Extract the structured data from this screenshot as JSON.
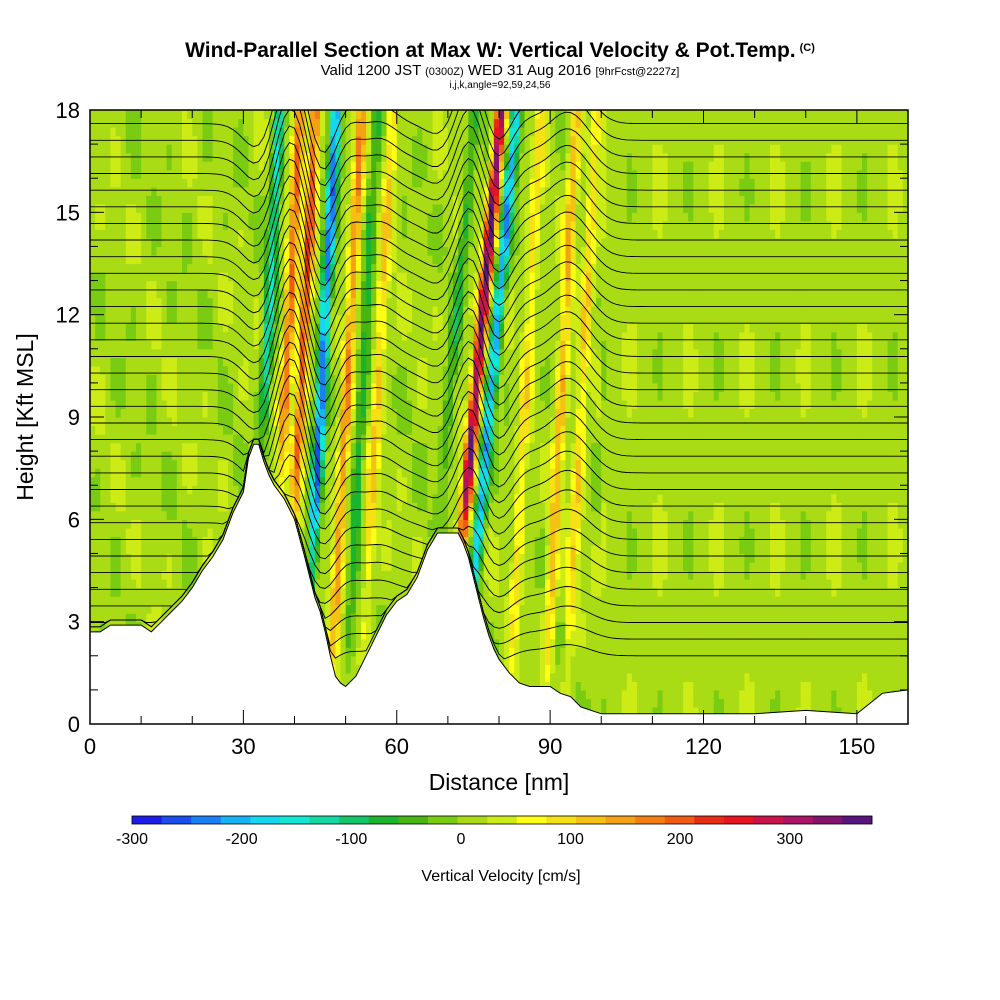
{
  "title": {
    "main": "Wind-Parallel Section at Max W: Vertical Velocity & Pot.Temp.",
    "mark": "(C)",
    "valid_prefix": "Valid 1200 JST",
    "valid_zulu": "(0300Z)",
    "valid_date": "WED 31 Aug 2016",
    "forecast": "[9hrFcst@2227z]",
    "indices": "i,j,k,angle=92,59,24,56"
  },
  "chart_data": {
    "type": "heatmap",
    "xlabel": "Distance [nm]",
    "ylabel": "Height [Kft MSL]",
    "xlim": [
      0,
      160
    ],
    "ylim": [
      0,
      18
    ],
    "x_ticks": [
      0,
      30,
      60,
      90,
      120,
      150
    ],
    "y_ticks": [
      0,
      3,
      6,
      9,
      12,
      15,
      18
    ],
    "x_tick_labels": [
      "0",
      "30",
      "60",
      "90",
      "120",
      "150"
    ],
    "y_tick_labels": [
      "0",
      "3",
      "6",
      "9",
      "12",
      "15",
      "18"
    ],
    "grid": false,
    "terrain_height_kft": {
      "distance": [
        0,
        2,
        4,
        6,
        8,
        10,
        12,
        14,
        16,
        18,
        20,
        22,
        24,
        26,
        28,
        30,
        31,
        32,
        33,
        34,
        35,
        36,
        37,
        38,
        40,
        42,
        43,
        44,
        45,
        46,
        47,
        48,
        49,
        50,
        52,
        54,
        56,
        58,
        60,
        62,
        64,
        66,
        68,
        70,
        72,
        73,
        74,
        75,
        76,
        77,
        78,
        79,
        80,
        82,
        84,
        86,
        88,
        90,
        92,
        94,
        96,
        100,
        110,
        120,
        130,
        140,
        150,
        155,
        160
      ],
      "height": [
        2.7,
        2.7,
        2.9,
        2.9,
        2.9,
        2.9,
        2.7,
        3.0,
        3.3,
        3.6,
        4.0,
        4.5,
        4.9,
        5.4,
        6.2,
        6.8,
        7.8,
        8.2,
        8.2,
        7.7,
        7.3,
        7.0,
        6.8,
        6.6,
        6.0,
        4.9,
        4.3,
        3.7,
        3.3,
        2.7,
        2.0,
        1.4,
        1.2,
        1.1,
        1.4,
        2.0,
        2.6,
        3.2,
        3.6,
        3.8,
        4.3,
        5.1,
        5.6,
        5.6,
        5.6,
        5.3,
        4.9,
        4.3,
        3.7,
        3.1,
        2.6,
        2.2,
        1.9,
        1.5,
        1.2,
        1.1,
        1.1,
        1.1,
        0.9,
        0.8,
        0.5,
        0.3,
        0.3,
        0.3,
        0.3,
        0.4,
        0.3,
        0.9,
        1.0
      ]
    },
    "vertical_velocity_features_cm_s": [
      {
        "x": 34,
        "kind": "downdraft",
        "peak": -150
      },
      {
        "x": 38,
        "kind": "updraft",
        "peak": 180
      },
      {
        "x": 41,
        "kind": "updraft",
        "peak": 200
      },
      {
        "x": 45,
        "kind": "downdraft",
        "peak": -250
      },
      {
        "x": 50,
        "kind": "updraft",
        "peak": 150
      },
      {
        "x": 53,
        "kind": "downdraft",
        "peak": -80
      },
      {
        "x": 56,
        "kind": "updraft",
        "peak": 100
      },
      {
        "x": 70,
        "kind": "downdraft",
        "peak": -80
      },
      {
        "x": 75,
        "kind": "updraft",
        "peak": 340
      },
      {
        "x": 78,
        "kind": "downdraft",
        "peak": -220
      },
      {
        "x": 85,
        "kind": "updraft",
        "peak": 80
      },
      {
        "x": 92,
        "kind": "updraft",
        "peak": 120
      },
      {
        "x": 96,
        "kind": "updraft",
        "peak": 90
      }
    ],
    "potential_temperature_contours": {
      "count": 33,
      "base_height_kft": 2.0,
      "top_height_kft": 17.6
    }
  },
  "colorbar": {
    "label": "Vertical Velocity [cm/s]",
    "range": [
      -300,
      375
    ],
    "tick_values": [
      -300,
      -200,
      -100,
      0,
      100,
      200,
      300
    ],
    "tick_labels": [
      "-300",
      "-200",
      "-100",
      "0",
      "100",
      "200",
      "300"
    ],
    "colors": [
      "#1d1de6",
      "#1c4ded",
      "#1a7ff5",
      "#17b3f5",
      "#14d7f0",
      "#13e6d2",
      "#14d8a2",
      "#14c468",
      "#1bb42e",
      "#48b512",
      "#7acc12",
      "#a9dc14",
      "#cdeb14",
      "#ffff14",
      "#f5e114",
      "#f5c214",
      "#f5a114",
      "#f57e14",
      "#f05a14",
      "#e62d14",
      "#e6141e",
      "#c8144b",
      "#aa1464",
      "#82146e",
      "#5a147d"
    ]
  }
}
